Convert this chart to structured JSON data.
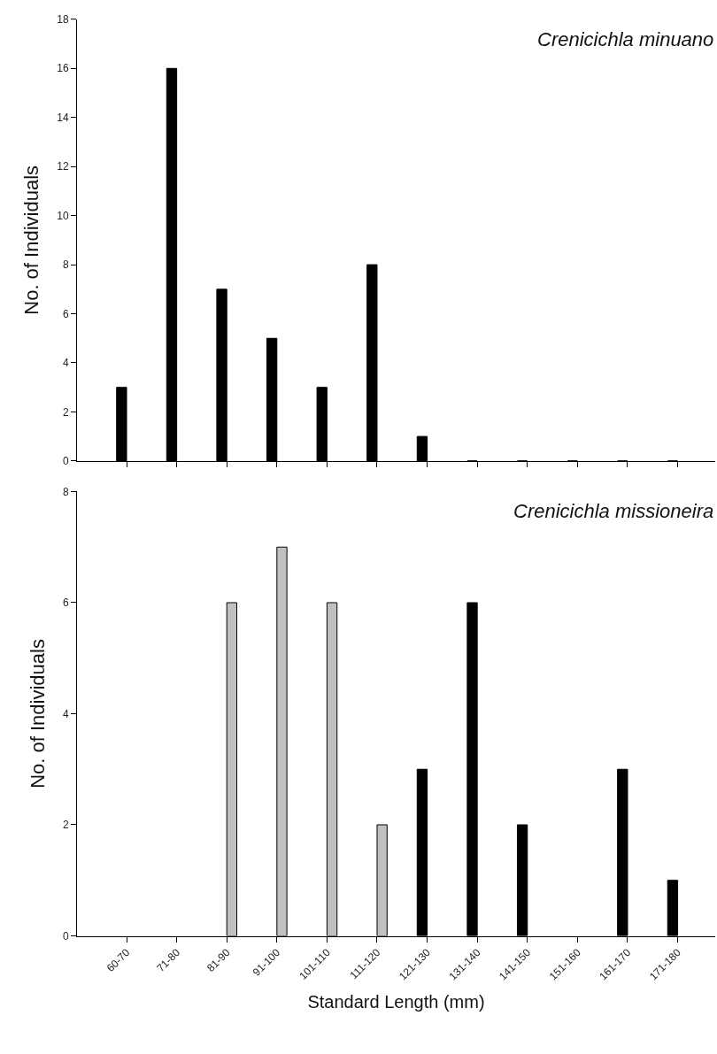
{
  "chart_data": [
    {
      "type": "bar",
      "title": "Crenicichla minuano",
      "ylabel": "No. of Individuals",
      "categories": [
        null,
        null,
        null,
        null,
        null,
        null,
        null,
        null,
        null,
        null,
        null,
        null
      ],
      "series": [
        {
          "color": "#000000",
          "values": [
            3,
            16,
            7,
            5,
            3,
            8,
            1,
            0,
            0,
            0,
            0,
            0
          ]
        }
      ],
      "ylim": [
        0,
        18
      ],
      "yticks": [
        0,
        2,
        4,
        6,
        8,
        10,
        12,
        14,
        16,
        18
      ],
      "tick_labels": "y"
    },
    {
      "type": "bar",
      "title": "Crenicichla missioneira",
      "ylabel": "No. of Individuals",
      "xlabel": "Standard Length (mm)",
      "categories": [
        "60-70",
        "71-80",
        "81-90",
        "91-100",
        "101-110",
        "111-120",
        "121-130",
        "131-140",
        "141-150",
        "151-160",
        "161-170",
        "171-180"
      ],
      "series": [
        {
          "color": "#000000",
          "values": [
            null,
            null,
            null,
            null,
            null,
            null,
            3,
            6,
            2,
            null,
            3,
            1
          ]
        },
        {
          "color": "#c0c0c0",
          "values": [
            null,
            null,
            6,
            7,
            6,
            2,
            null,
            null,
            null,
            null,
            null,
            null
          ]
        }
      ],
      "ylim": [
        0,
        8
      ],
      "yticks": [
        0,
        2,
        4,
        6,
        8
      ]
    }
  ]
}
